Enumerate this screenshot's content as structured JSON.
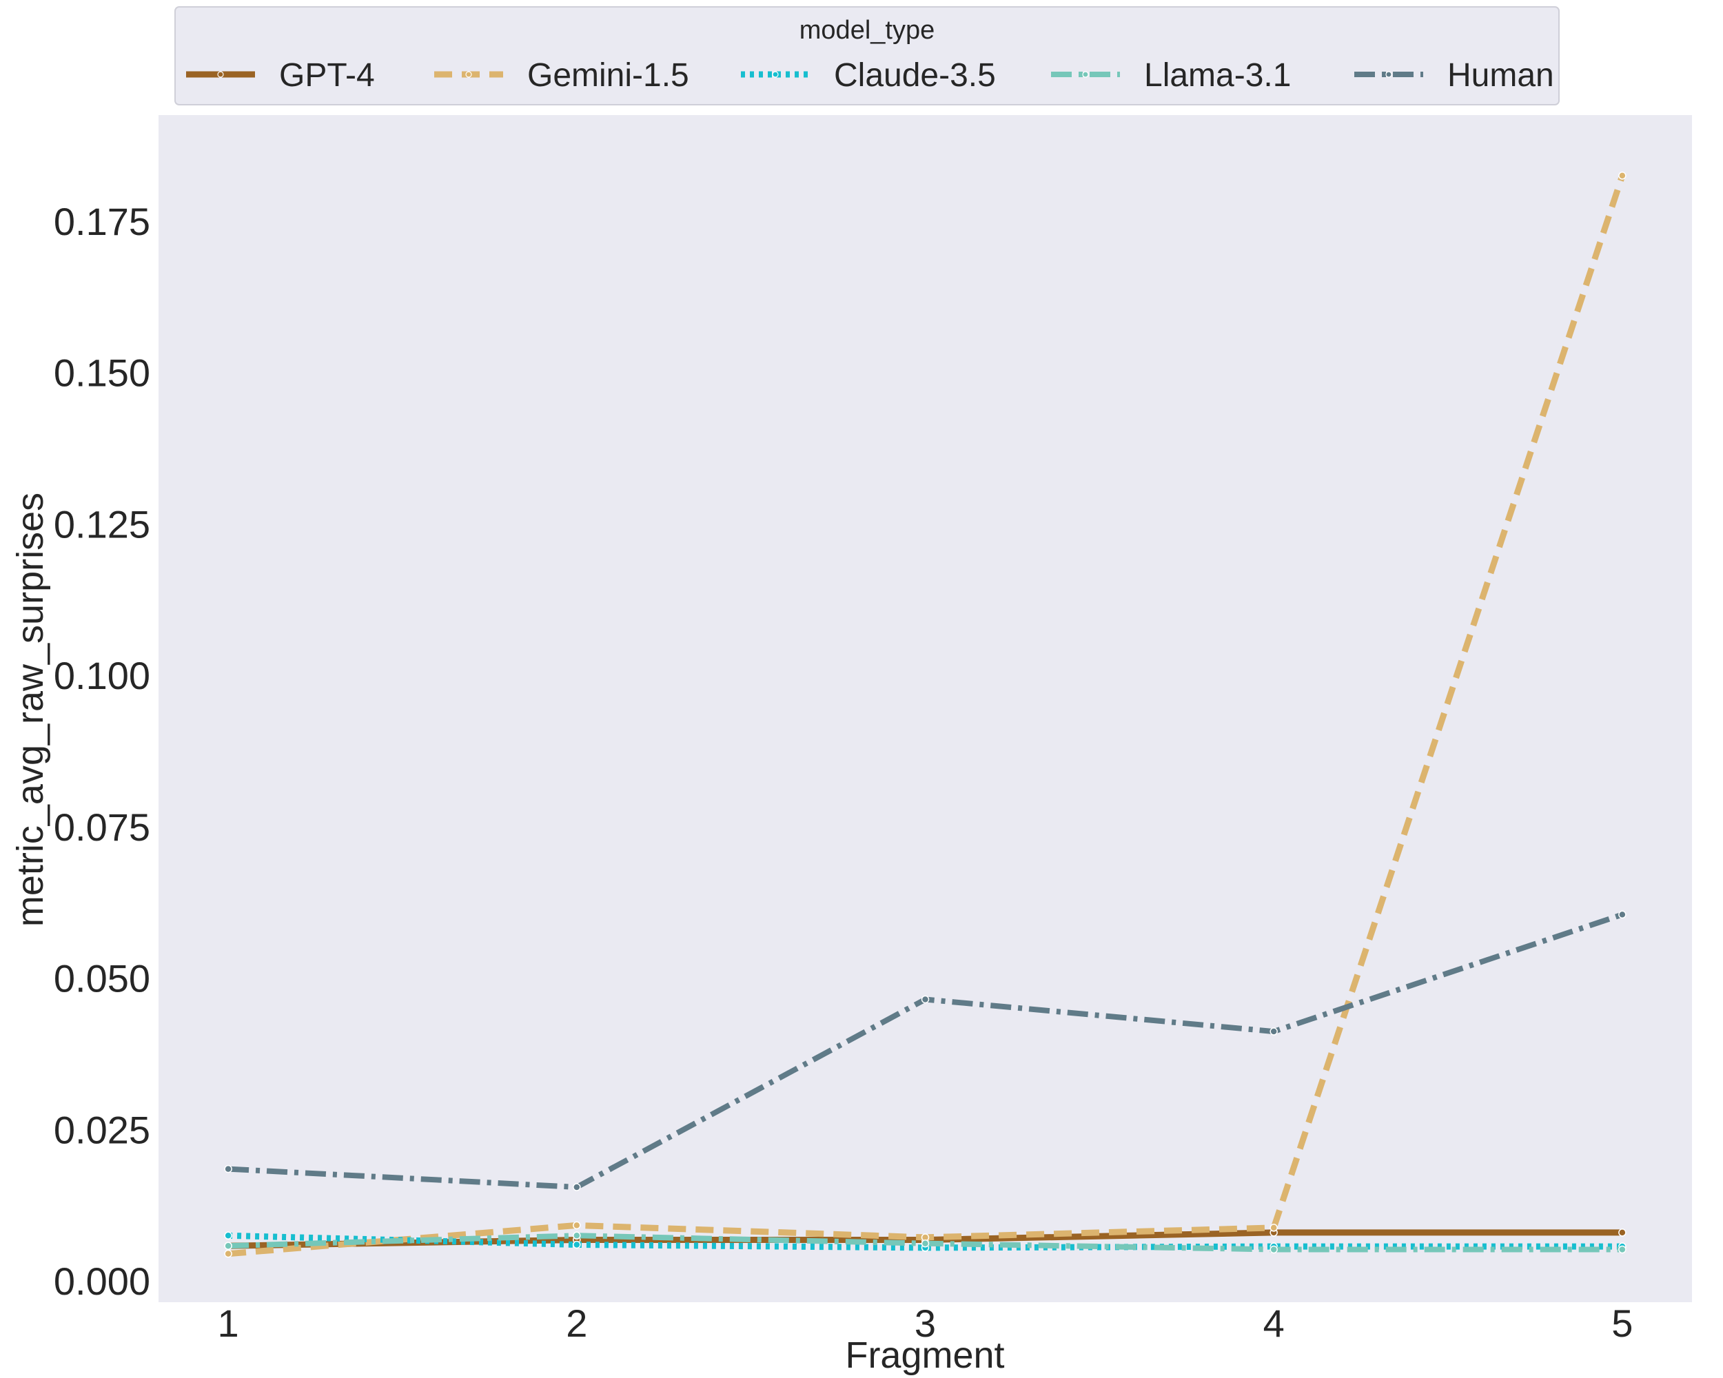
{
  "chart_data": {
    "type": "line",
    "title": "",
    "xlabel": "Fragment",
    "ylabel": "metric_avg_raw_surprises",
    "x": [
      1,
      2,
      3,
      4,
      5
    ],
    "x_tick_labels": [
      "1",
      "2",
      "3",
      "4",
      "5"
    ],
    "xlim": [
      0.8,
      5.2
    ],
    "ylim": [
      -0.0035,
      0.1925
    ],
    "y_ticks": [
      0.0,
      0.025,
      0.05,
      0.075,
      0.1,
      0.125,
      0.15,
      0.175
    ],
    "y_tick_labels": [
      "0.000",
      "0.025",
      "0.050",
      "0.075",
      "0.100",
      "0.125",
      "0.150",
      "0.175"
    ],
    "grid": false,
    "background": "#eaeaf2",
    "legend": {
      "title": "model_type",
      "placement": "top, outside plot, single row"
    },
    "series": [
      {
        "name": "GPT-4",
        "values": [
          0.0058,
          0.0068,
          0.0068,
          0.008,
          0.008
        ],
        "color": "#9a6324",
        "dash": "solid"
      },
      {
        "name": "Gemini-1.5",
        "values": [
          0.0045,
          0.0092,
          0.0072,
          0.0088,
          0.1825
        ],
        "color": "#dcb46e",
        "dash": "dashed"
      },
      {
        "name": "Claude-3.5",
        "values": [
          0.0075,
          0.006,
          0.0055,
          0.0057,
          0.0057
        ],
        "color": "#17becf",
        "dash": "dotted"
      },
      {
        "name": "Llama-3.1",
        "values": [
          0.0058,
          0.0075,
          0.0062,
          0.0052,
          0.0052
        ],
        "color": "#76c7b9",
        "dash": "dashdot"
      },
      {
        "name": "Human",
        "values": [
          0.0185,
          0.0155,
          0.0465,
          0.0412,
          0.0605
        ],
        "color": "#607b88",
        "dash": "dashdot"
      }
    ]
  }
}
